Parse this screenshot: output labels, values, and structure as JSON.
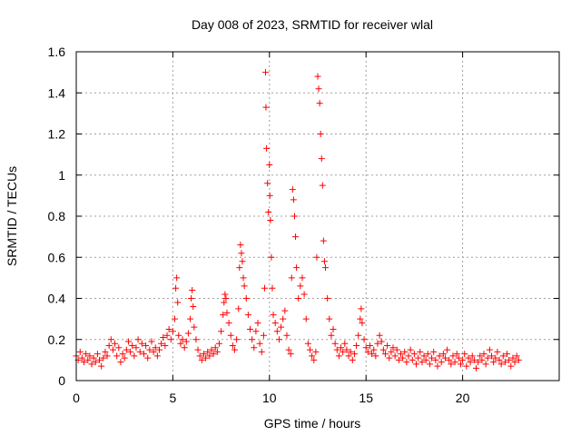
{
  "chart_data": {
    "type": "scatter",
    "title": "Day 008 of 2023, SRMTID for receiver wlal",
    "xlabel": "GPS time / hours",
    "ylabel": "SRMTID / TECUs",
    "xlim": [
      0,
      25
    ],
    "ylim": [
      0,
      1.6
    ],
    "xticks": [
      0,
      5,
      10,
      15,
      20
    ],
    "xtick_labels": [
      "0",
      "5",
      "10",
      "15",
      "20"
    ],
    "yticks": [
      0,
      0.2,
      0.4,
      0.6,
      0.8,
      1.0,
      1.2,
      1.4,
      1.6
    ],
    "ytick_labels": [
      "0",
      "0.2",
      "0.4",
      "0.6",
      "0.8",
      "1",
      "1.2",
      "1.4",
      "1.6"
    ],
    "grid": true,
    "marker": "plus",
    "color": "#ff0000",
    "series": [
      {
        "name": "SRMTID",
        "points": [
          [
            0.0,
            0.12
          ],
          [
            0.1,
            0.1
          ],
          [
            0.2,
            0.14
          ],
          [
            0.3,
            0.11
          ],
          [
            0.4,
            0.09
          ],
          [
            0.5,
            0.13
          ],
          [
            0.6,
            0.1
          ],
          [
            0.7,
            0.12
          ],
          [
            0.8,
            0.08
          ],
          [
            0.9,
            0.11
          ],
          [
            1.0,
            0.09
          ],
          [
            1.1,
            0.13
          ],
          [
            1.2,
            0.1
          ],
          [
            1.3,
            0.07
          ],
          [
            1.4,
            0.11
          ],
          [
            1.5,
            0.14
          ],
          [
            1.6,
            0.12
          ],
          [
            1.7,
            0.17
          ],
          [
            1.8,
            0.2
          ],
          [
            1.9,
            0.15
          ],
          [
            2.0,
            0.18
          ],
          [
            2.1,
            0.12
          ],
          [
            2.2,
            0.16
          ],
          [
            2.3,
            0.09
          ],
          [
            2.4,
            0.13
          ],
          [
            2.5,
            0.11
          ],
          [
            2.6,
            0.15
          ],
          [
            2.7,
            0.19
          ],
          [
            2.8,
            0.14
          ],
          [
            2.9,
            0.17
          ],
          [
            3.0,
            0.12
          ],
          [
            3.1,
            0.16
          ],
          [
            3.2,
            0.2
          ],
          [
            3.3,
            0.14
          ],
          [
            3.4,
            0.18
          ],
          [
            3.5,
            0.13
          ],
          [
            3.6,
            0.17
          ],
          [
            3.7,
            0.11
          ],
          [
            3.8,
            0.15
          ],
          [
            3.9,
            0.19
          ],
          [
            4.0,
            0.14
          ],
          [
            4.1,
            0.16
          ],
          [
            4.2,
            0.12
          ],
          [
            4.3,
            0.15
          ],
          [
            4.4,
            0.18
          ],
          [
            4.5,
            0.21
          ],
          [
            4.6,
            0.17
          ],
          [
            4.7,
            0.22
          ],
          [
            4.8,
            0.25
          ],
          [
            4.9,
            0.2
          ],
          [
            5.0,
            0.24
          ],
          [
            5.1,
            0.3
          ],
          [
            5.15,
            0.45
          ],
          [
            5.2,
            0.5
          ],
          [
            5.25,
            0.38
          ],
          [
            5.3,
            0.22
          ],
          [
            5.4,
            0.18
          ],
          [
            5.5,
            0.2
          ],
          [
            5.6,
            0.16
          ],
          [
            5.7,
            0.19
          ],
          [
            5.8,
            0.23
          ],
          [
            5.9,
            0.3
          ],
          [
            5.95,
            0.4
          ],
          [
            6.0,
            0.44
          ],
          [
            6.05,
            0.36
          ],
          [
            6.1,
            0.26
          ],
          [
            6.2,
            0.2
          ],
          [
            6.3,
            0.15
          ],
          [
            6.4,
            0.12
          ],
          [
            6.5,
            0.1
          ],
          [
            6.6,
            0.13
          ],
          [
            6.7,
            0.11
          ],
          [
            6.8,
            0.14
          ],
          [
            6.9,
            0.12
          ],
          [
            7.0,
            0.15
          ],
          [
            7.1,
            0.13
          ],
          [
            7.2,
            0.16
          ],
          [
            7.3,
            0.14
          ],
          [
            7.4,
            0.18
          ],
          [
            7.5,
            0.24
          ],
          [
            7.6,
            0.32
          ],
          [
            7.65,
            0.38
          ],
          [
            7.7,
            0.42
          ],
          [
            7.75,
            0.4
          ],
          [
            7.8,
            0.33
          ],
          [
            7.9,
            0.28
          ],
          [
            8.0,
            0.22
          ],
          [
            8.1,
            0.17
          ],
          [
            8.2,
            0.15
          ],
          [
            8.3,
            0.2
          ],
          [
            8.4,
            0.35
          ],
          [
            8.45,
            0.55
          ],
          [
            8.5,
            0.66
          ],
          [
            8.55,
            0.62
          ],
          [
            8.6,
            0.58
          ],
          [
            8.65,
            0.5
          ],
          [
            8.7,
            0.46
          ],
          [
            8.8,
            0.4
          ],
          [
            8.9,
            0.32
          ],
          [
            9.0,
            0.25
          ],
          [
            9.1,
            0.2
          ],
          [
            9.2,
            0.16
          ],
          [
            9.3,
            0.24
          ],
          [
            9.4,
            0.28
          ],
          [
            9.5,
            0.18
          ],
          [
            9.6,
            0.14
          ],
          [
            9.7,
            0.22
          ],
          [
            9.75,
            0.45
          ],
          [
            9.8,
            1.5
          ],
          [
            9.82,
            1.33
          ],
          [
            9.85,
            1.13
          ],
          [
            9.9,
            0.96
          ],
          [
            9.95,
            0.82
          ],
          [
            10.0,
            1.05
          ],
          [
            10.02,
            0.9
          ],
          [
            10.05,
            0.78
          ],
          [
            10.1,
            0.6
          ],
          [
            10.15,
            0.45
          ],
          [
            10.2,
            0.32
          ],
          [
            10.3,
            0.28
          ],
          [
            10.4,
            0.24
          ],
          [
            10.5,
            0.2
          ],
          [
            10.6,
            0.26
          ],
          [
            10.7,
            0.3
          ],
          [
            10.8,
            0.34
          ],
          [
            10.9,
            0.22
          ],
          [
            11.0,
            0.15
          ],
          [
            11.1,
            0.13
          ],
          [
            11.15,
            0.5
          ],
          [
            11.2,
            0.93
          ],
          [
            11.25,
            0.88
          ],
          [
            11.3,
            0.8
          ],
          [
            11.35,
            0.7
          ],
          [
            11.4,
            0.55
          ],
          [
            11.5,
            0.4
          ],
          [
            11.6,
            0.46
          ],
          [
            11.7,
            0.5
          ],
          [
            11.8,
            0.42
          ],
          [
            11.9,
            0.3
          ],
          [
            12.0,
            0.18
          ],
          [
            12.1,
            0.15
          ],
          [
            12.2,
            0.12
          ],
          [
            12.3,
            0.1
          ],
          [
            12.4,
            0.14
          ],
          [
            12.45,
            0.6
          ],
          [
            12.5,
            1.48
          ],
          [
            12.55,
            1.42
          ],
          [
            12.6,
            1.35
          ],
          [
            12.65,
            1.2
          ],
          [
            12.7,
            1.08
          ],
          [
            12.75,
            0.95
          ],
          [
            12.8,
            0.68
          ],
          [
            12.85,
            0.58
          ],
          [
            12.9,
            0.55
          ],
          [
            13.0,
            0.4
          ],
          [
            13.1,
            0.3
          ],
          [
            13.2,
            0.22
          ],
          [
            13.3,
            0.25
          ],
          [
            13.4,
            0.18
          ],
          [
            13.5,
            0.15
          ],
          [
            13.6,
            0.12
          ],
          [
            13.7,
            0.16
          ],
          [
            13.8,
            0.14
          ],
          [
            13.9,
            0.18
          ],
          [
            14.0,
            0.15
          ],
          [
            14.1,
            0.12
          ],
          [
            14.2,
            0.14
          ],
          [
            14.3,
            0.1
          ],
          [
            14.4,
            0.13
          ],
          [
            14.5,
            0.17
          ],
          [
            14.6,
            0.22
          ],
          [
            14.7,
            0.3
          ],
          [
            14.75,
            0.35
          ],
          [
            14.8,
            0.28
          ],
          [
            14.9,
            0.2
          ],
          [
            15.0,
            0.16
          ],
          [
            15.1,
            0.14
          ],
          [
            15.2,
            0.17
          ],
          [
            15.3,
            0.13
          ],
          [
            15.4,
            0.15
          ],
          [
            15.5,
            0.12
          ],
          [
            15.6,
            0.18
          ],
          [
            15.7,
            0.22
          ],
          [
            15.8,
            0.19
          ],
          [
            15.9,
            0.15
          ],
          [
            16.0,
            0.13
          ],
          [
            16.1,
            0.17
          ],
          [
            16.2,
            0.11
          ],
          [
            16.3,
            0.14
          ],
          [
            16.4,
            0.16
          ],
          [
            16.5,
            0.12
          ],
          [
            16.6,
            0.15
          ],
          [
            16.7,
            0.1
          ],
          [
            16.8,
            0.13
          ],
          [
            16.9,
            0.11
          ],
          [
            17.0,
            0.14
          ],
          [
            17.1,
            0.09
          ],
          [
            17.2,
            0.12
          ],
          [
            17.3,
            0.15
          ],
          [
            17.4,
            0.1
          ],
          [
            17.5,
            0.13
          ],
          [
            17.6,
            0.08
          ],
          [
            17.7,
            0.11
          ],
          [
            17.8,
            0.14
          ],
          [
            17.9,
            0.09
          ],
          [
            18.0,
            0.12
          ],
          [
            18.1,
            0.1
          ],
          [
            18.2,
            0.13
          ],
          [
            18.3,
            0.08
          ],
          [
            18.4,
            0.11
          ],
          [
            18.5,
            0.14
          ],
          [
            18.6,
            0.1
          ],
          [
            18.7,
            0.07
          ],
          [
            18.8,
            0.12
          ],
          [
            18.9,
            0.09
          ],
          [
            19.0,
            0.13
          ],
          [
            19.1,
            0.11
          ],
          [
            19.2,
            0.15
          ],
          [
            19.3,
            0.1
          ],
          [
            19.4,
            0.08
          ],
          [
            19.5,
            0.12
          ],
          [
            19.6,
            0.09
          ],
          [
            19.7,
            0.13
          ],
          [
            19.8,
            0.11
          ],
          [
            19.9,
            0.08
          ],
          [
            20.0,
            0.1
          ],
          [
            20.1,
            0.13
          ],
          [
            20.2,
            0.07
          ],
          [
            20.3,
            0.11
          ],
          [
            20.4,
            0.09
          ],
          [
            20.5,
            0.12
          ],
          [
            20.6,
            0.1
          ],
          [
            20.7,
            0.06
          ],
          [
            20.8,
            0.09
          ],
          [
            20.9,
            0.12
          ],
          [
            21.0,
            0.1
          ],
          [
            21.1,
            0.13
          ],
          [
            21.2,
            0.08
          ],
          [
            21.3,
            0.11
          ],
          [
            21.4,
            0.15
          ],
          [
            21.5,
            0.12
          ],
          [
            21.6,
            0.09
          ],
          [
            21.7,
            0.11
          ],
          [
            21.8,
            0.14
          ],
          [
            21.9,
            0.1
          ],
          [
            22.0,
            0.08
          ],
          [
            22.1,
            0.12
          ],
          [
            22.2,
            0.09
          ],
          [
            22.3,
            0.13
          ],
          [
            22.4,
            0.1
          ],
          [
            22.5,
            0.07
          ],
          [
            22.6,
            0.11
          ],
          [
            22.7,
            0.09
          ],
          [
            22.8,
            0.12
          ],
          [
            22.9,
            0.1
          ]
        ]
      }
    ]
  }
}
